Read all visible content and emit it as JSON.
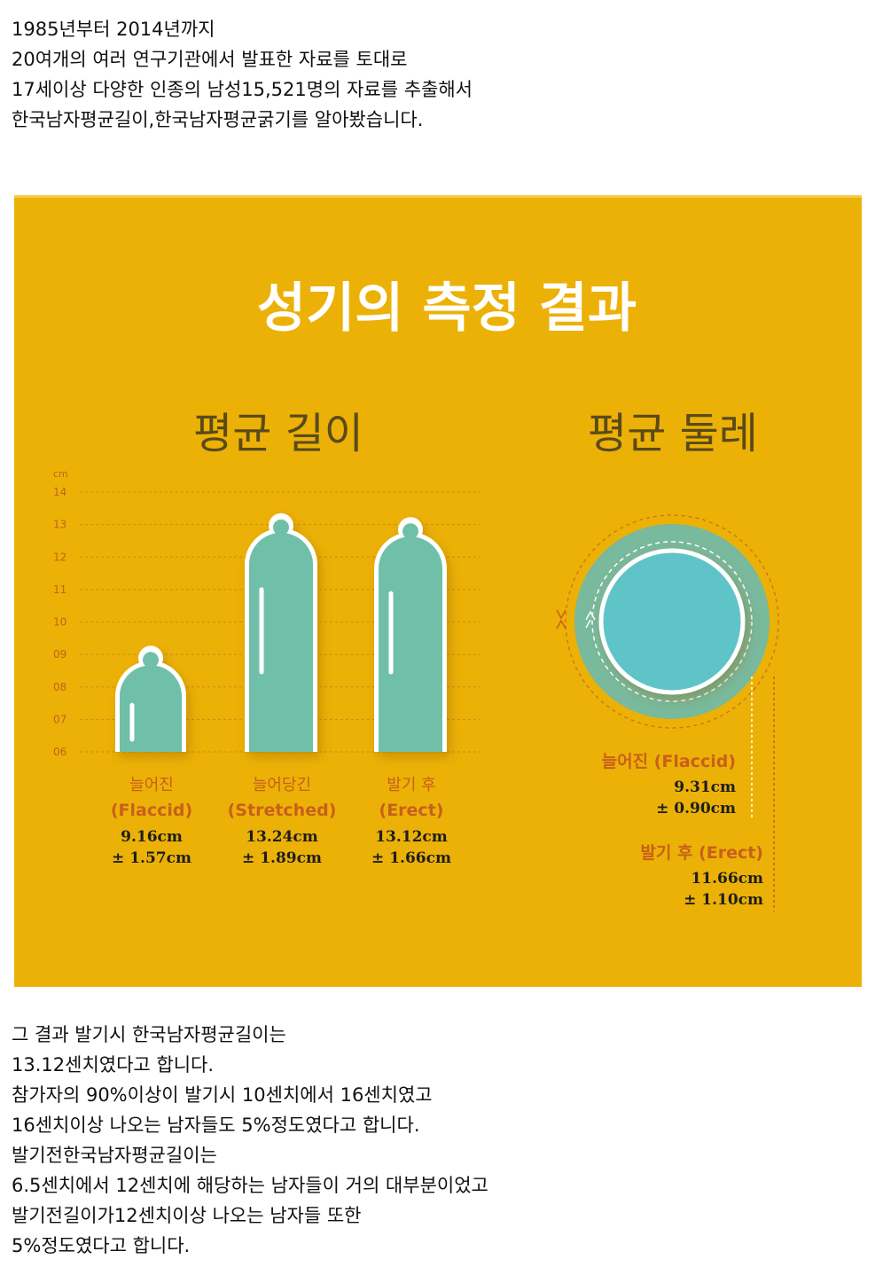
{
  "intro": [
    "1985년부터 2014년까지",
    "20여개의 여러 연구기관에서 발표한 자료를 토대로",
    "17세이상 다양한 인종의 남성15,521명의 자료를 추출해서",
    "한국남자평균길이,한국남자평균굵기를 알아봤습니다."
  ],
  "outro": [
    "그 결과 발기시 한국남자평균길이는",
    "13.12센치였다고 합니다.",
    "참가자의 90%이상이 발기시 10센치에서 16센치였고",
    "16센치이상 나오는 남자들도 5%정도였다고 합니다.",
    "발기전한국남자평균길이는",
    "6.5센치에서 12센치에 해당하는 남자들이 거의 대부분이었고",
    "발기전길이가12센치이상 나오는 남자들 또한",
    "5%정도였다고 합니다."
  ],
  "colors": {
    "background": "#ecb106",
    "bar": "#6fc0a9",
    "circle_inner": "#5ec4c8",
    "circle_outer": "#79b99c",
    "label": "#c7601a",
    "value": "#1e1e1e",
    "grid": "#c98a14",
    "title": "#ffffff",
    "subtitle": "#5a4a1a"
  },
  "chart_data": [
    {
      "type": "bar",
      "title": "성기의 측정 결과",
      "subtitle": "평균 길이",
      "unit_label": "cm",
      "ylim": [
        6,
        14
      ],
      "yticks": [
        "06",
        "07",
        "08",
        "09",
        "10",
        "11",
        "12",
        "13",
        "14"
      ],
      "grid": true,
      "bars": [
        {
          "name": "늘어진",
          "name_en": "(Flaccid)",
          "value": 9.16,
          "value_text": "9.16cm",
          "sd_text": "± 1.57cm"
        },
        {
          "name": "늘어당긴",
          "name_en": "(Stretched)",
          "value": 13.24,
          "value_text": "13.24cm",
          "sd_text": "± 1.89cm"
        },
        {
          "name": "발기 후",
          "name_en": "(Erect)",
          "value": 13.12,
          "value_text": "13.12cm",
          "sd_text": "± 1.66cm"
        }
      ]
    },
    {
      "type": "circle",
      "subtitle": "평균 둘레",
      "items": [
        {
          "label": "늘어진 (Flaccid)",
          "value": 9.31,
          "value_text": "9.31cm",
          "sd_text": "± 0.90cm"
        },
        {
          "label": "발기 후 (Erect)",
          "value": 11.66,
          "value_text": "11.66cm",
          "sd_text": "± 1.10cm"
        }
      ]
    }
  ]
}
